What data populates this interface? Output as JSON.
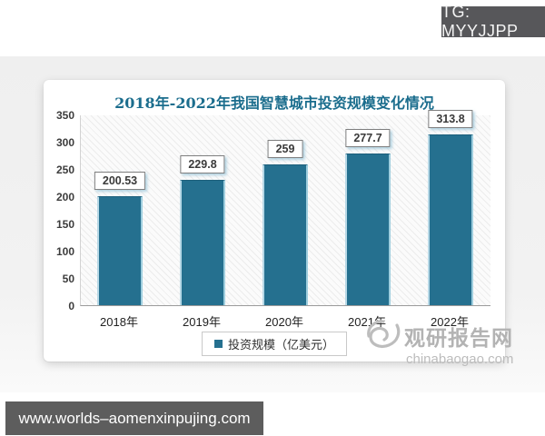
{
  "badge": {
    "label": "TG: MYYJJPP"
  },
  "footer": {
    "url": "www.worlds–aomenxinpujing.com"
  },
  "watermark": {
    "site_name": "观研报告网",
    "site_domain": "chinabaogao.com"
  },
  "chart_data": {
    "type": "bar",
    "title": "2018年-2022年我国智慧城市投资规模变化情况",
    "categories": [
      "2018年",
      "2019年",
      "2020年",
      "2021年",
      "2022年"
    ],
    "values": [
      200.53,
      229.8,
      259,
      277.7,
      313.8
    ],
    "value_labels": [
      "200.53",
      "229.8",
      "259",
      "277.7",
      "313.8"
    ],
    "xlabel": "",
    "ylabel": "",
    "ylim": [
      0,
      350
    ],
    "yticks": [
      350,
      300,
      250,
      200,
      150,
      100,
      50,
      0
    ],
    "grid": false,
    "legend": {
      "label": "投资规模（亿美元）",
      "position": "bottom"
    },
    "colors": {
      "bar": "#25708f",
      "bar_highlight": "#b7d8e6",
      "title": "#1b6d8d"
    }
  }
}
